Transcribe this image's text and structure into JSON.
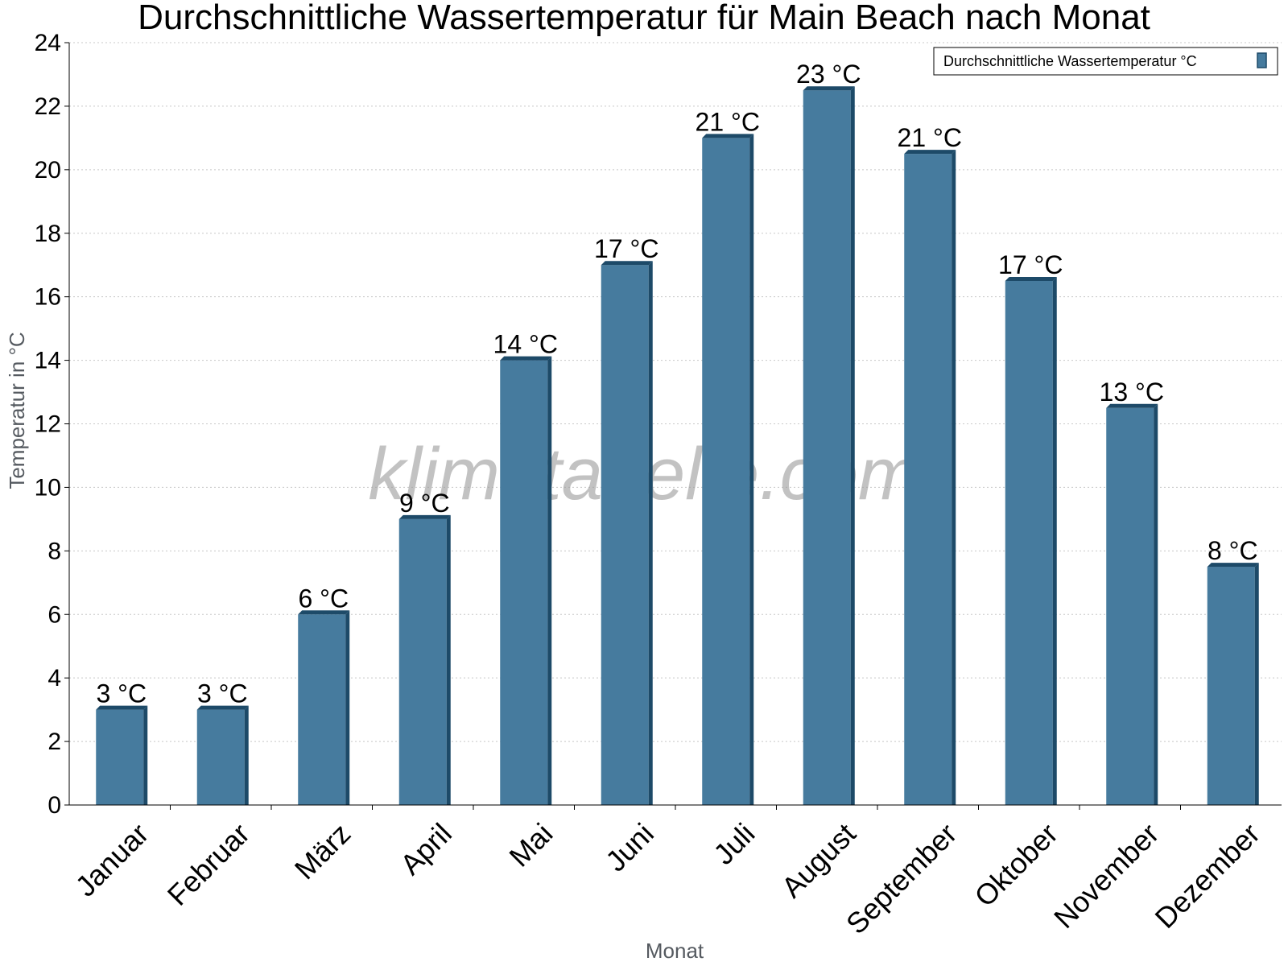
{
  "chart_data": {
    "type": "bar",
    "title": "Durchschnittliche Wassertemperatur für Main Beach nach Monat",
    "xlabel": "Monat",
    "ylabel": "Temperatur in °C",
    "categories": [
      "Januar",
      "Februar",
      "März",
      "April",
      "Mai",
      "Juni",
      "Juli",
      "August",
      "September",
      "Oktober",
      "November",
      "Dezember"
    ],
    "series": [
      {
        "name": "Durchschnittliche Wassertemperatur °C",
        "values": [
          3,
          3,
          6,
          9,
          14,
          17,
          21,
          22.5,
          20.5,
          16.5,
          12.5,
          7.5
        ],
        "labels": [
          "3 °C",
          "3 °C",
          "6 °C",
          "9 °C",
          "14 °C",
          "17 °C",
          "21 °C",
          "23 °C",
          "21 °C",
          "17 °C",
          "13 °C",
          "8 °C"
        ]
      }
    ],
    "ylim": [
      0,
      24
    ],
    "yticks": [
      0,
      2,
      4,
      6,
      8,
      10,
      12,
      14,
      16,
      18,
      20,
      22,
      24
    ],
    "grid": true,
    "legend_position": "top-right",
    "colors": {
      "bar": "#467b9e",
      "bar_side": "#1d4a68",
      "bar_top": "#1d4a68",
      "grid": "#c8c8c8"
    }
  },
  "watermark": "klimatabelle.com"
}
